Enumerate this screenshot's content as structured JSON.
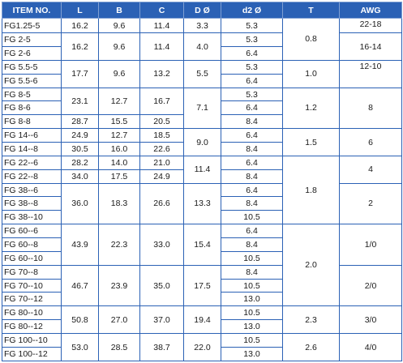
{
  "columns": [
    "ITEM NO.",
    "L",
    "B",
    "C",
    "D Ø",
    "d2 Ø",
    "T",
    "AWG"
  ],
  "rows": [
    {
      "item": "FG1.25-5",
      "L": "16.2",
      "B": "9.6",
      "C": "11.4",
      "D": "3.3",
      "d2": "5.3",
      "T": "",
      "AWG": "22-18"
    },
    {
      "item": "FG 2-5",
      "L": "16.2",
      "B": "9.6",
      "C": "11.4",
      "D": "4.0",
      "d2": "5.3",
      "T": "0.8",
      "AWG": "16-14"
    },
    {
      "item": "FG 2-6",
      "L": "",
      "B": "",
      "C": "",
      "D": "",
      "d2": "6.4",
      "T": "",
      "AWG": ""
    },
    {
      "item": "FG 5.5-5",
      "L": "17.7",
      "B": "9.6",
      "C": "13.2",
      "D": "5.5",
      "d2": "5.3",
      "T": "1.0",
      "AWG": "12-10"
    },
    {
      "item": "FG 5.5-6",
      "L": "",
      "B": "",
      "C": "",
      "D": "",
      "d2": "6.4",
      "T": "",
      "AWG": ""
    },
    {
      "item": "FG 8-5",
      "L": "23.1",
      "B": "12.7",
      "C": "16.7",
      "D": "7.1",
      "d2": "5.3",
      "T": "1.2",
      "AWG": "8"
    },
    {
      "item": "FG 8-6",
      "L": "",
      "B": "",
      "C": "",
      "D": "",
      "d2": "6.4",
      "T": "",
      "AWG": ""
    },
    {
      "item": "FG 8-8",
      "L": "28.7",
      "B": "15.5",
      "C": "20.5",
      "D": "",
      "d2": "8.4",
      "T": "",
      "AWG": ""
    },
    {
      "item": "FG 14--6",
      "L": "24.9",
      "B": "12.7",
      "C": "18.5",
      "D": "9.0",
      "d2": "6.4",
      "T": "1.5",
      "AWG": "6"
    },
    {
      "item": "FG 14--8",
      "L": "30.5",
      "B": "16.0",
      "C": "22.6",
      "D": "",
      "d2": "8.4",
      "T": "",
      "AWG": ""
    },
    {
      "item": "FG 22--6",
      "L": "28.2",
      "B": "14.0",
      "C": "21.0",
      "D": "11.4",
      "d2": "6.4",
      "T": "1.8",
      "AWG": "4"
    },
    {
      "item": "FG 22--8",
      "L": "34.0",
      "B": "17.5",
      "C": "24.9",
      "D": "",
      "d2": "8.4",
      "T": "",
      "AWG": ""
    },
    {
      "item": "FG 38--6",
      "L": "36.0",
      "B": "18.3",
      "C": "26.6",
      "D": "13.3",
      "d2": "6.4",
      "T": "",
      "AWG": "2"
    },
    {
      "item": "FG 38--8",
      "L": "",
      "B": "",
      "C": "",
      "D": "",
      "d2": "8.4",
      "T": "",
      "AWG": ""
    },
    {
      "item": "FG 38--10",
      "L": "",
      "B": "",
      "C": "",
      "D": "",
      "d2": "10.5",
      "T": "",
      "AWG": ""
    },
    {
      "item": "FG 60--6",
      "L": "43.9",
      "B": "22.3",
      "C": "33.0",
      "D": "15.4",
      "d2": "6.4",
      "T": "2.0",
      "AWG": "1/0"
    },
    {
      "item": "FG 60--8",
      "L": "",
      "B": "",
      "C": "",
      "D": "",
      "d2": "8.4",
      "T": "",
      "AWG": ""
    },
    {
      "item": "FG 60--10",
      "L": "",
      "B": "",
      "C": "",
      "D": "",
      "d2": "10.5",
      "T": "",
      "AWG": ""
    },
    {
      "item": "FG 70--8",
      "L": "46.7",
      "B": "23.9",
      "C": "35.0",
      "D": "17.5",
      "d2": "8.4",
      "T": "",
      "AWG": "2/0"
    },
    {
      "item": "FG 70--10",
      "L": "",
      "B": "",
      "C": "",
      "D": "",
      "d2": "10.5",
      "T": "",
      "AWG": ""
    },
    {
      "item": "FG 70--12",
      "L": "",
      "B": "",
      "C": "",
      "D": "",
      "d2": "13.0",
      "T": "",
      "AWG": ""
    },
    {
      "item": "FG 80--10",
      "L": "50.8",
      "B": "27.0",
      "C": "37.0",
      "D": "19.4",
      "d2": "10.5",
      "T": "2.3",
      "AWG": "3/0"
    },
    {
      "item": "FG 80--12",
      "L": "",
      "B": "",
      "C": "",
      "D": "",
      "d2": "13.0",
      "T": "",
      "AWG": ""
    },
    {
      "item": "FG 100--10",
      "L": "53.0",
      "B": "28.5",
      "C": "38.7",
      "D": "22.0",
      "d2": "10.5",
      "T": "2.6",
      "AWG": "4/0"
    },
    {
      "item": "FG 100--12",
      "L": "",
      "B": "",
      "C": "",
      "D": "",
      "d2": "13.0",
      "T": "",
      "AWG": ""
    }
  ]
}
